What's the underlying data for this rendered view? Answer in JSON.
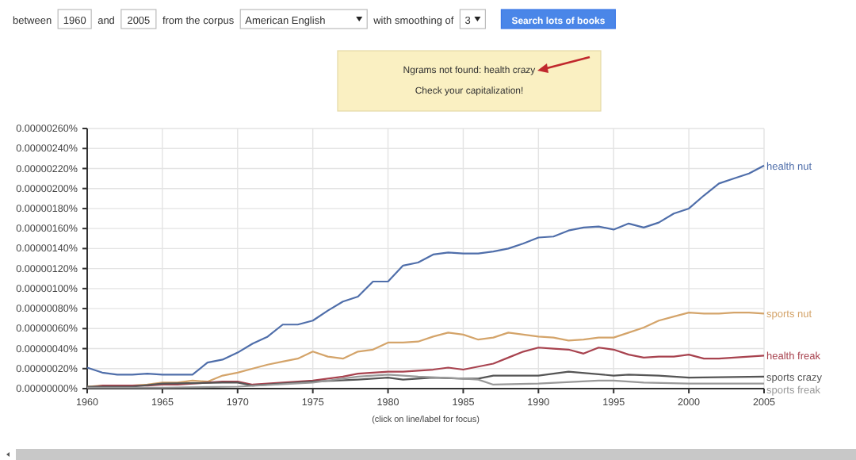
{
  "chart_data": {
    "type": "line",
    "annotations": [
      "between",
      "1960",
      "and",
      "2005",
      "from the corpus",
      "American English",
      "with smoothing of",
      "3",
      "Search lots of books",
      "Ngrams not found: health crazy",
      "Check your capitalization!",
      "(click on line/label for focus)"
    ],
    "x": [
      1960,
      1961,
      1962,
      1963,
      1964,
      1965,
      1966,
      1967,
      1968,
      1969,
      1970,
      1971,
      1972,
      1973,
      1974,
      1975,
      1976,
      1977,
      1978,
      1979,
      1980,
      1981,
      1982,
      1983,
      1984,
      1985,
      1986,
      1987,
      1988,
      1989,
      1990,
      1991,
      1992,
      1993,
      1994,
      1995,
      1996,
      1997,
      1998,
      1999,
      2000,
      2001,
      2002,
      2003,
      2004,
      2005
    ],
    "series": [
      {
        "name": "health nut",
        "color": "#4f6eaa",
        "values": [
          2.1e-07,
          1.6e-07,
          1.4e-07,
          1.4e-07,
          1.5e-07,
          1.4e-07,
          1.4e-07,
          1.4e-07,
          2.6e-07,
          2.9e-07,
          3.6e-07,
          4.5e-07,
          5.2e-07,
          6.4e-07,
          6.4e-07,
          6.8e-07,
          7.8e-07,
          8.7e-07,
          9.2e-07,
          1.07e-06,
          1.07e-06,
          1.23e-06,
          1.26e-06,
          1.34e-06,
          1.36e-06,
          1.35e-06,
          1.35e-06,
          1.37e-06,
          1.4e-06,
          1.45e-06,
          1.51e-06,
          1.52e-06,
          1.58e-06,
          1.61e-06,
          1.62e-06,
          1.59e-06,
          1.65e-06,
          1.61e-06,
          1.66e-06,
          1.75e-06,
          1.8e-06,
          1.93e-06,
          2.05e-06,
          2.1e-06,
          2.15e-06,
          2.23e-06
        ]
      },
      {
        "name": "sports nut",
        "color": "#d4a46a",
        "values": [
          2e-08,
          3e-08,
          3e-08,
          3e-08,
          4e-08,
          6e-08,
          6e-08,
          8e-08,
          7e-08,
          1.3e-07,
          1.6e-07,
          2e-07,
          2.4e-07,
          2.7e-07,
          3e-07,
          3.7e-07,
          3.2e-07,
          3e-07,
          3.7e-07,
          3.9e-07,
          4.6e-07,
          4.6e-07,
          4.7e-07,
          5.2e-07,
          5.6e-07,
          5.4e-07,
          4.9e-07,
          5.1e-07,
          5.6e-07,
          5.4e-07,
          5.2e-07,
          5.1e-07,
          4.8e-07,
          4.9e-07,
          5.1e-07,
          5.1e-07,
          5.6e-07,
          6.1e-07,
          6.8e-07,
          7.2e-07,
          7.6e-07,
          7.5e-07,
          7.5e-07,
          7.6e-07,
          7.6e-07,
          7.5e-07
        ]
      },
      {
        "name": "health freak",
        "color": "#a8434f",
        "values": [
          1e-08,
          3e-08,
          3e-08,
          3e-08,
          3e-08,
          4e-08,
          4e-08,
          5e-08,
          6e-08,
          7e-08,
          7e-08,
          4e-08,
          5e-08,
          6e-08,
          7e-08,
          8e-08,
          1e-07,
          1.2e-07,
          1.5e-07,
          1.6e-07,
          1.7e-07,
          1.7e-07,
          1.8e-07,
          1.9e-07,
          2.1e-07,
          1.9e-07,
          2.2e-07,
          2.5e-07,
          3.1e-07,
          3.7e-07,
          4.1e-07,
          4e-07,
          3.9e-07,
          3.5e-07,
          4.1e-07,
          3.9e-07,
          3.4e-07,
          3.1e-07,
          3.2e-07,
          3.2e-07,
          3.4e-07,
          3e-07,
          3e-07,
          3.1e-07,
          3.2e-07,
          3.3e-07
        ]
      },
      {
        "name": "sports crazy",
        "color": "#555555",
        "x": [
          1960,
          1963,
          1965,
          1969,
          1970,
          1971,
          1975,
          1978,
          1980,
          1981,
          1983,
          1985,
          1986,
          1987,
          1990,
          1992,
          1995,
          1996,
          1998,
          2000,
          2005
        ],
        "values": [
          2e-08,
          2e-08,
          5e-08,
          6e-08,
          6e-08,
          3e-08,
          7e-08,
          9e-08,
          1.1e-07,
          9e-08,
          1.1e-07,
          1e-07,
          1e-07,
          1.3e-07,
          1.3e-07,
          1.7e-07,
          1.3e-07,
          1.4e-07,
          1.3e-07,
          1.1e-07,
          1.2e-07
        ]
      },
      {
        "name": "sports freak",
        "color": "#999999",
        "x": [
          1960,
          1965,
          1970,
          1975,
          1978,
          1980,
          1981,
          1982,
          1985,
          1986,
          1987,
          1990,
          1994,
          1995,
          1997,
          2000,
          2005
        ],
        "values": [
          1e-08,
          1e-08,
          2e-08,
          6e-08,
          1.2e-07,
          1.4e-07,
          1.3e-07,
          1.2e-07,
          1e-07,
          9e-08,
          4e-08,
          5e-08,
          8e-08,
          8e-08,
          6e-08,
          5e-08,
          5e-08
        ]
      }
    ],
    "xlim": [
      1960,
      2005
    ],
    "xticks": [
      1960,
      1965,
      1970,
      1975,
      1980,
      1985,
      1990,
      1995,
      2000,
      2005
    ],
    "ylim": [
      0,
      2.6e-06
    ],
    "yticks": [
      {
        "value": 0,
        "label": "0.00000000%"
      },
      {
        "value": 2e-07,
        "label": "0.00000020%"
      },
      {
        "value": 4e-07,
        "label": "0.00000040%"
      },
      {
        "value": 6e-07,
        "label": "0.00000060%"
      },
      {
        "value": 8e-07,
        "label": "0.00000080%"
      },
      {
        "value": 1e-06,
        "label": "0.00000100%"
      },
      {
        "value": 1.2e-06,
        "label": "0.00000120%"
      },
      {
        "value": 1.4e-06,
        "label": "0.00000140%"
      },
      {
        "value": 1.6e-06,
        "label": "0.00000160%"
      },
      {
        "value": 1.8e-06,
        "label": "0.00000180%"
      },
      {
        "value": 2e-06,
        "label": "0.00000200%"
      },
      {
        "value": 2.2e-06,
        "label": "0.00000220%"
      },
      {
        "value": 2.4e-06,
        "label": "0.00000240%"
      },
      {
        "value": 2.6e-06,
        "label": "0.00000260%"
      }
    ],
    "grid": true
  }
}
